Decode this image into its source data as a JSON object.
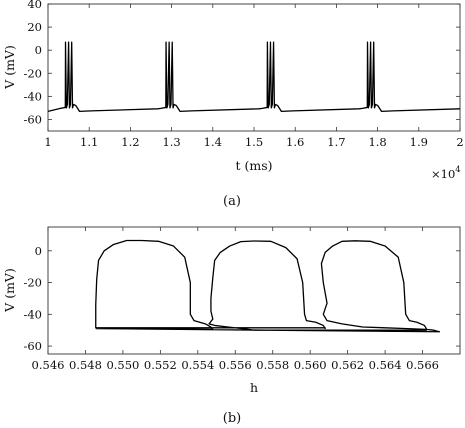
{
  "chart_data": [
    {
      "id": "a",
      "type": "line",
      "caption": "(a)",
      "xlabel": "t (ms)",
      "ylabel": "V (mV)",
      "x_multiplier": "×10",
      "x_multiplier_exp": "4",
      "xlim": [
        1,
        2
      ],
      "ylim": [
        -70,
        40
      ],
      "xticks": [
        1,
        1.1,
        1.2,
        1.3,
        1.4,
        1.5,
        1.6,
        1.7,
        1.8,
        1.9,
        2
      ],
      "xtick_labels": [
        "1",
        "1.1",
        "1.2",
        "1.3",
        "1.4",
        "1.5",
        "1.6",
        "1.7",
        "1.8",
        "1.9",
        "2"
      ],
      "yticks": [
        -60,
        -40,
        -20,
        0,
        20,
        40
      ],
      "ytick_labels": [
        "-60",
        "-40",
        "-20",
        "0",
        "20",
        "40"
      ],
      "grid": false,
      "burst_starts": [
        1.042,
        1.286,
        1.532,
        1.775
      ],
      "spikes_per_burst": 3,
      "spike_peak": 7,
      "series": [
        {
          "baseline": [
            [
              1,
              -53
            ],
            [
              1.04,
              -49.6
            ]
          ],
          "interburst_low": -53,
          "interburst_high": -49.6
        }
      ]
    },
    {
      "id": "b",
      "type": "line",
      "caption": "(b)",
      "xlabel": "h",
      "ylabel": "V (mV)",
      "xlim": [
        0.546,
        0.568
      ],
      "ylim": [
        -65,
        15
      ],
      "xticks": [
        0.546,
        0.548,
        0.55,
        0.552,
        0.554,
        0.556,
        0.558,
        0.56,
        0.562,
        0.564,
        0.566
      ],
      "xtick_labels": [
        "0.546",
        "0.548",
        "0.550",
        "0.552",
        "0.554",
        "0.556",
        "0.558",
        "0.560",
        "0.562",
        "0.564",
        "0.566"
      ],
      "yticks": [
        -60,
        -40,
        -20,
        0
      ],
      "ytick_labels": [
        "-60",
        "-40",
        "-20",
        "0"
      ],
      "grid": false,
      "series": [
        {
          "x": [
            0.54855,
            0.5548,
            0.5548,
            0.5547,
            0.5544,
            0.5538,
            0.5536,
            0.5536,
            0.5533,
            0.5527,
            0.5519,
            0.551,
            0.5502,
            0.5495,
            0.549,
            0.5487,
            0.5486,
            0.54855,
            0.54855,
            0.54875,
            0.5493,
            0.5503,
            0.5508,
            0.5608,
            0.5608,
            0.5607,
            0.5603,
            0.5598,
            0.5597,
            0.5596,
            0.5593,
            0.5587,
            0.5579,
            0.557,
            0.5563,
            0.5557,
            0.5552,
            0.5549,
            0.5548,
            0.5547,
            0.5547,
            0.5548,
            0.5546,
            0.5549,
            0.5556,
            0.5564,
            0.557,
            0.5662,
            0.5662,
            0.5661,
            0.5657,
            0.5653,
            0.5651,
            0.565,
            0.5647,
            0.564,
            0.5632,
            0.5624,
            0.5617,
            0.5612,
            0.5608,
            0.5606,
            0.5607,
            0.5609,
            0.5607,
            0.5609,
            0.5617,
            0.5628,
            0.564,
            0.5652,
            0.5662,
            0.5666,
            0.5669,
            0.54855
          ],
          "y": [
            -48.5,
            -49.5,
            -49.5,
            -48,
            -46,
            -44,
            -40,
            -20,
            -4,
            3,
            6,
            6.5,
            6.5,
            4,
            0,
            -6,
            -18,
            -34,
            -48.5,
            -48.5,
            -48.5,
            -48.5,
            -48.5,
            -48.5,
            -49,
            -47,
            -45,
            -44,
            -40,
            -20,
            -5,
            2,
            6,
            6.2,
            5.8,
            3,
            -1,
            -6,
            -17,
            -30,
            -38,
            -43,
            -46,
            -47,
            -48,
            -49,
            -50,
            -50,
            -49,
            -47,
            -45,
            -44,
            -40,
            -20,
            -4,
            3,
            6,
            6.3,
            6,
            3,
            -1,
            -8,
            -20,
            -33,
            -40,
            -44,
            -46,
            -48,
            -48.5,
            -49,
            -49.5,
            -50,
            -51,
            -49
          ]
        }
      ]
    }
  ]
}
